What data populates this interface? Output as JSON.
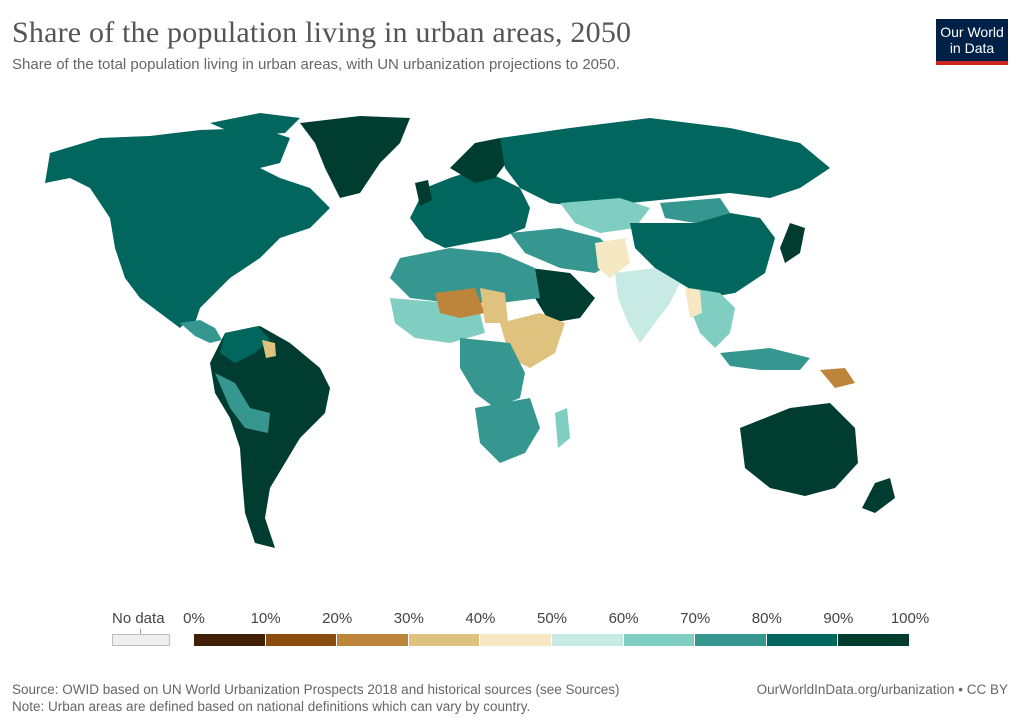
{
  "header": {
    "title": "Share of the population living in urban areas, 2050",
    "subtitle": "Share of the total population living in urban areas, with UN urbanization projections to 2050."
  },
  "logo": {
    "line1": "Our World",
    "line2": "in Data",
    "bg": "#002147",
    "accent": "#ce261e"
  },
  "legend": {
    "no_data_label": "No data",
    "tick_labels": [
      "0%",
      "10%",
      "20%",
      "30%",
      "40%",
      "50%",
      "60%",
      "70%",
      "80%",
      "90%",
      "100%"
    ],
    "colors": [
      "#3f2006",
      "#8a4d0f",
      "#bd843c",
      "#dfc27d",
      "#f6e8c3",
      "#c7eae5",
      "#80cdc1",
      "#35978f",
      "#01665e",
      "#003c30"
    ],
    "no_data_color": "#efefef"
  },
  "footer": {
    "source": "Source: OWID based on UN World Urbanization Prospects 2018 and historical sources (see Sources)",
    "note": "Note: Urban areas are defined based on national definitions which can vary by country.",
    "link": "OurWorldInData.org/urbanization • CC BY"
  }
}
